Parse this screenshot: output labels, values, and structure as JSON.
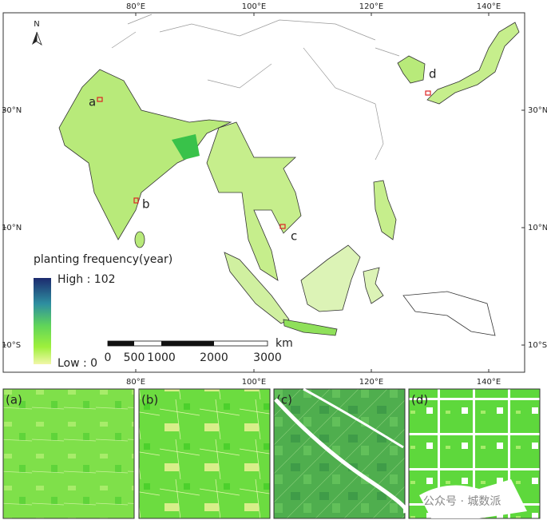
{
  "map": {
    "north_label": "N",
    "lon_labels_top": [
      "80°E",
      "100°E",
      "120°E",
      "140°E"
    ],
    "lon_labels_bottom": [
      "80°E",
      "100°E",
      "120°E",
      "140°E"
    ],
    "lat_labels_left": [
      "30°N",
      "10°N",
      "10°S"
    ],
    "lat_labels_right": [
      "30°N",
      "10°N",
      "10°S"
    ],
    "site_labels": [
      "a",
      "b",
      "c",
      "d"
    ],
    "legend": {
      "title": "planting frequency(year)",
      "high": "High : 102",
      "low": "Low : 0"
    },
    "scale_bar": {
      "labels": [
        "0",
        "500",
        "1000",
        "2000",
        "3000"
      ],
      "unit": "km"
    }
  },
  "panels": [
    {
      "label": "(a)"
    },
    {
      "label": "(b)"
    },
    {
      "label": "(c)"
    },
    {
      "label": "(d)"
    }
  ],
  "watermark": "公众号 · 城数派"
}
